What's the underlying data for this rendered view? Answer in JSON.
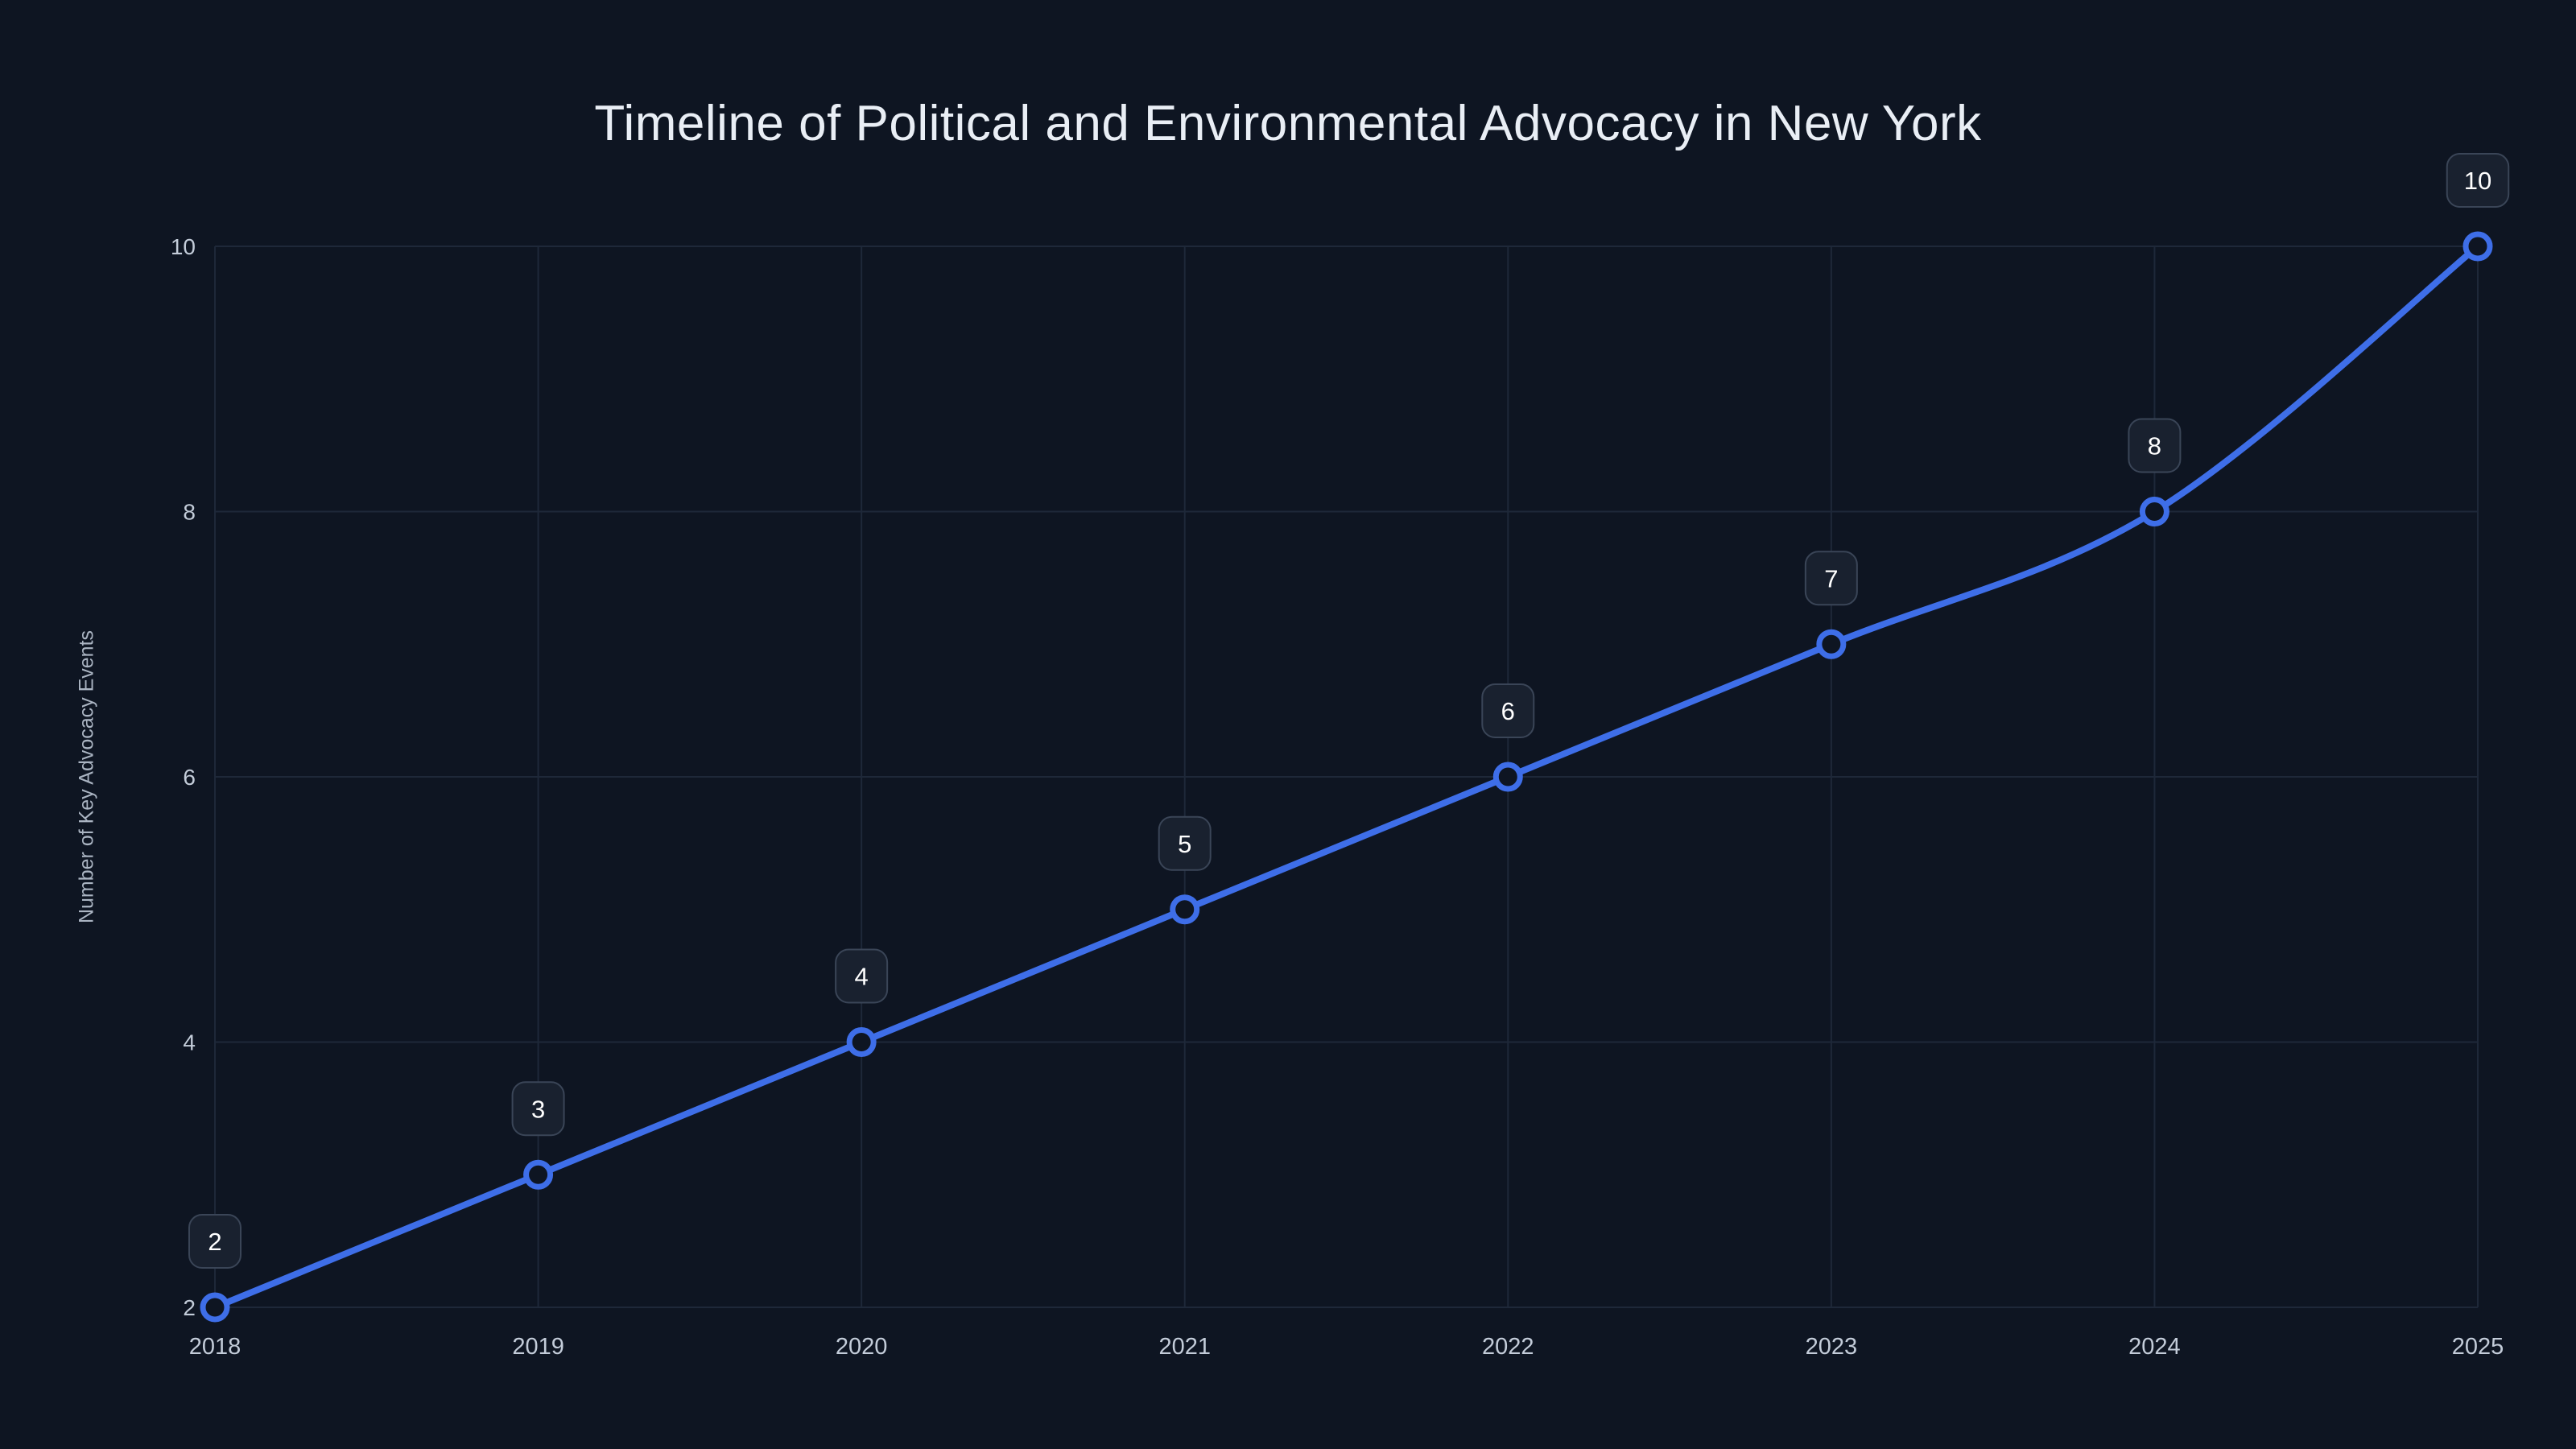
{
  "title": "Timeline of Political and Environmental Advocacy in New York",
  "colors": {
    "background": "#0e1522",
    "line": "#3e6ee8",
    "marker_fill": "#0e1522",
    "grid": "#1e2839",
    "tick_text": "#c3ccd9",
    "axis_title_text": "#aab4c2",
    "title_text": "#e9eef5",
    "badge_bg": "#19212f",
    "badge_border": "#3a4557",
    "badge_text": "#ffffff"
  },
  "chart_data": {
    "type": "line",
    "title": "Timeline of Political and Environmental Advocacy in New York",
    "xlabel": "",
    "ylabel": "Number of Key Advocacy Events",
    "x": [
      2018,
      2019,
      2020,
      2021,
      2022,
      2023,
      2024,
      2025
    ],
    "y": [
      2,
      3,
      4,
      5,
      6,
      7,
      8,
      10
    ],
    "point_labels": [
      "2",
      "3",
      "4",
      "5",
      "6",
      "7",
      "8",
      "10"
    ],
    "xticks": [
      "2018",
      "2019",
      "2020",
      "2021",
      "2022",
      "2023",
      "2024",
      "2025"
    ],
    "yticks": [
      2,
      4,
      6,
      8,
      10
    ],
    "xlim": [
      2018,
      2025
    ],
    "ylim": [
      2,
      10
    ],
    "grid": true,
    "legend": false,
    "line_shape": "spline"
  }
}
